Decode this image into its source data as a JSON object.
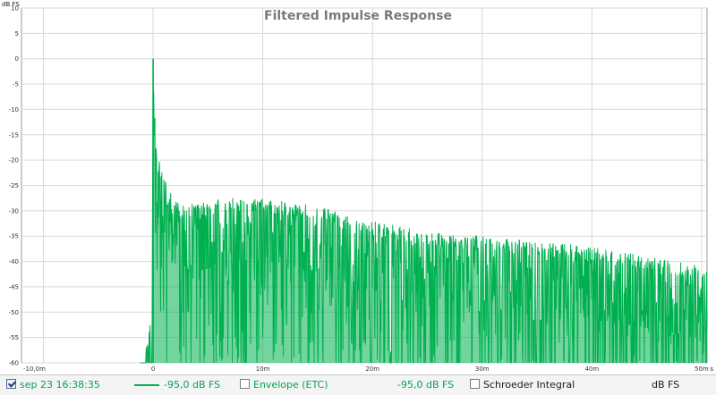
{
  "chart_data": {
    "type": "line",
    "title": "Filtered Impulse Response",
    "ylabel": "dB FS",
    "xlabel": "",
    "xunit": "s",
    "xlim": [
      -0.012,
      0.0505
    ],
    "ylim": [
      -60,
      10
    ],
    "x_ticks": [
      -0.01,
      0,
      0.01,
      0.02,
      0.03,
      0.04,
      0.05
    ],
    "x_tick_labels": [
      "-10,0m",
      "0",
      "10m",
      "20m",
      "30m",
      "40m",
      "50m"
    ],
    "y_ticks": [
      10,
      5,
      0,
      -5,
      -10,
      -15,
      -20,
      -25,
      -30,
      -35,
      -40,
      -45,
      -50,
      -55,
      -60
    ],
    "y_tick_labels": [
      "10",
      "5",
      "0",
      "-5",
      "-10",
      "-15",
      "-20",
      "-25",
      "-30",
      "-35",
      "-40",
      "-45",
      "-50",
      "-55",
      "-60"
    ],
    "grid": true,
    "legend_position": "bottom",
    "series_color": "#00b050",
    "series": [
      {
        "name": "sep 23 16:38:35",
        "envelope_points": [
          [
            -0.012,
            -60
          ],
          [
            -0.0007,
            -60
          ],
          [
            -0.0006,
            -56
          ],
          [
            -0.0004,
            -54
          ],
          [
            -0.0001,
            -48
          ],
          [
            0.0,
            0.0
          ],
          [
            0.0002,
            -14
          ],
          [
            0.0004,
            -19
          ],
          [
            0.0008,
            -22
          ],
          [
            0.0015,
            -25
          ],
          [
            0.0025,
            -29
          ],
          [
            0.005,
            -28
          ],
          [
            0.0075,
            -27
          ],
          [
            0.01,
            -27.5
          ],
          [
            0.015,
            -29
          ],
          [
            0.02,
            -32
          ],
          [
            0.025,
            -34
          ],
          [
            0.03,
            -35
          ],
          [
            0.035,
            -36
          ],
          [
            0.04,
            -37
          ],
          [
            0.045,
            -39
          ],
          [
            0.0505,
            -41
          ]
        ]
      }
    ]
  },
  "legend": {
    "series_label": "sep 23 16:38:35",
    "series_checked": true,
    "series_level": "-95,0 dB FS",
    "envelope_label": "Envelope (ETC)",
    "envelope_checked": false,
    "envelope_level": "-95,0 dB FS",
    "schroeder_label": "Schroeder Integral",
    "schroeder_checked": false,
    "units": "dB FS"
  }
}
